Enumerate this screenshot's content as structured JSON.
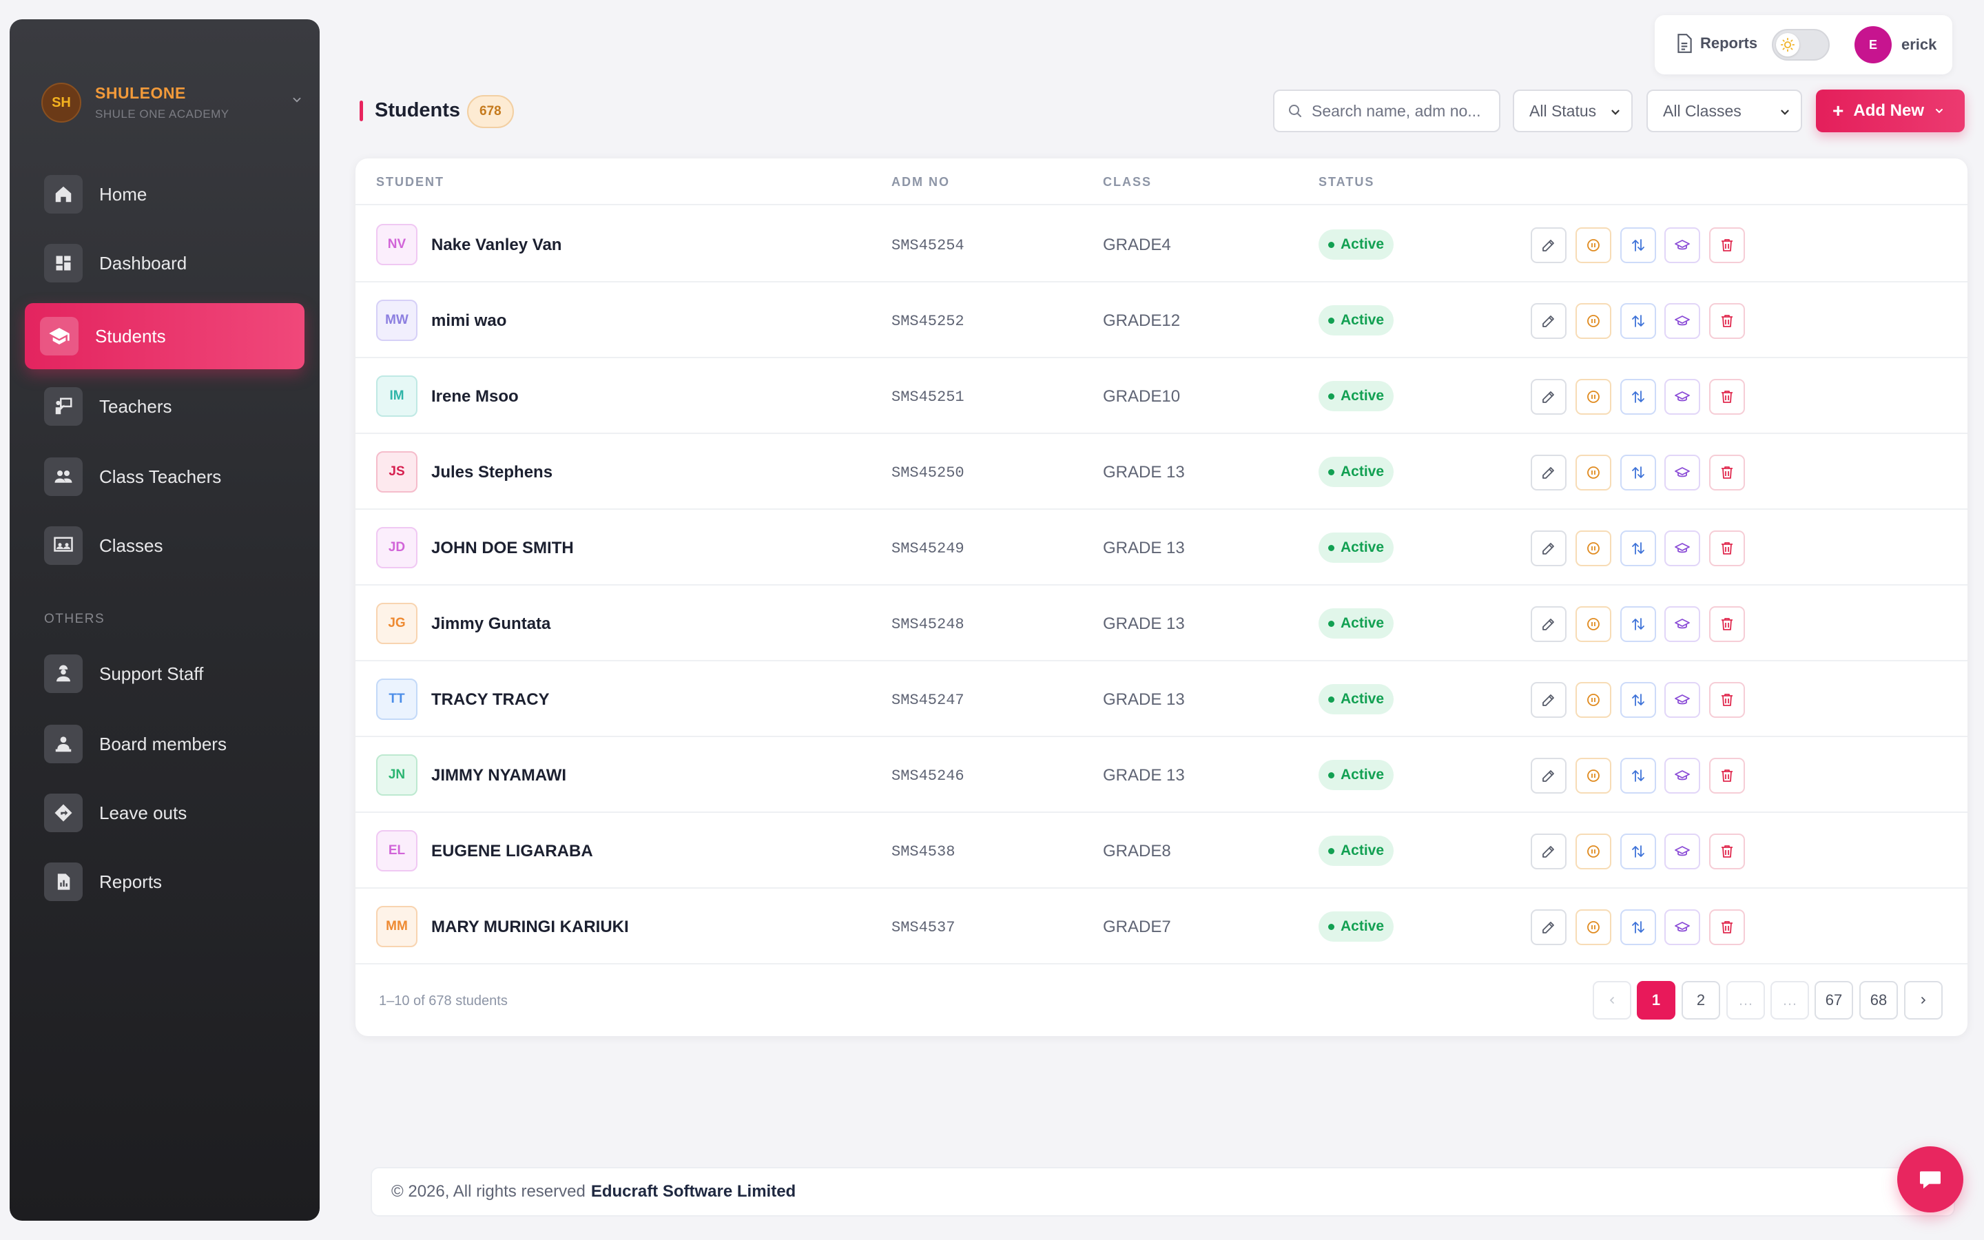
{
  "brand": {
    "initials": "SH",
    "name": "SHULEONE",
    "subtitle": "SHULE ONE ACADEMY"
  },
  "sidebar": {
    "items": [
      {
        "label": "Home",
        "icon": "home-icon"
      },
      {
        "label": "Dashboard",
        "icon": "dashboard-icon"
      },
      {
        "label": "Students",
        "icon": "graduation-cap-icon",
        "active": true
      },
      {
        "label": "Teachers",
        "icon": "teacher-icon"
      },
      {
        "label": "Class Teachers",
        "icon": "people-icon"
      },
      {
        "label": "Classes",
        "icon": "classroom-icon"
      }
    ],
    "section_label": "OTHERS",
    "other_items": [
      {
        "label": "Support Staff",
        "icon": "staff-icon"
      },
      {
        "label": "Board members",
        "icon": "board-icon"
      },
      {
        "label": "Leave outs",
        "icon": "directions-icon"
      },
      {
        "label": "Reports",
        "icon": "report-icon"
      }
    ]
  },
  "topbar": {
    "reports_label": "Reports",
    "user_initial": "E",
    "user_name": "erick"
  },
  "page": {
    "title": "Students",
    "count": "678",
    "search_placeholder": "Search name, adm no...",
    "status_filter": "All Status",
    "class_filter": "All Classes",
    "add_label": "Add New"
  },
  "table": {
    "columns": [
      "STUDENT",
      "ADM NO",
      "CLASS",
      "STATUS"
    ],
    "rows": [
      {
        "initials": "NV",
        "name": "Nake Vanley Van",
        "adm": "SMS45254",
        "class": "GRADE4",
        "status": "Active"
      },
      {
        "initials": "MW",
        "name": "mimi wao",
        "adm": "SMS45252",
        "class": "GRADE12",
        "status": "Active"
      },
      {
        "initials": "IM",
        "name": "Irene Msoo",
        "adm": "SMS45251",
        "class": "GRADE10",
        "status": "Active"
      },
      {
        "initials": "JS",
        "name": "Jules Stephens",
        "adm": "SMS45250",
        "class": "GRADE 13",
        "status": "Active"
      },
      {
        "initials": "JD",
        "name": "JOHN DOE SMITH",
        "adm": "SMS45249",
        "class": "GRADE 13",
        "status": "Active"
      },
      {
        "initials": "JG",
        "name": "Jimmy Guntata",
        "adm": "SMS45248",
        "class": "GRADE 13",
        "status": "Active"
      },
      {
        "initials": "TT",
        "name": "TRACY TRACY",
        "adm": "SMS45247",
        "class": "GRADE 13",
        "status": "Active"
      },
      {
        "initials": "JN",
        "name": "JIMMY NYAMAWI",
        "adm": "SMS45246",
        "class": "GRADE 13",
        "status": "Active"
      },
      {
        "initials": "EL",
        "name": "EUGENE LIGARABA",
        "adm": "SMS4538",
        "class": "GRADE8",
        "status": "Active"
      },
      {
        "initials": "MM",
        "name": "MARY MURINGI KARIUKI",
        "adm": "SMS4537",
        "class": "GRADE7",
        "status": "Active"
      }
    ],
    "avatar_colors": [
      {
        "fg": "#d164d8",
        "bg": "#fbeefc",
        "border": "#f0c8f3"
      },
      {
        "fg": "#8c7fe0",
        "bg": "#f1effd",
        "border": "#d6d0f7"
      },
      {
        "fg": "#2fb5a8",
        "bg": "#e6f8f6",
        "border": "#bfe9e4"
      },
      {
        "fg": "#d61f4f",
        "bg": "#fde9ee",
        "border": "#f5bccb"
      },
      {
        "fg": "#d164d8",
        "bg": "#fbeefc",
        "border": "#f0c8f3"
      },
      {
        "fg": "#ee8a32",
        "bg": "#fef3e8",
        "border": "#f8d4b0"
      },
      {
        "fg": "#4b8de8",
        "bg": "#ebf3fe",
        "border": "#c3d9f8"
      },
      {
        "fg": "#2bb571",
        "bg": "#e7f8ef",
        "border": "#bde9d0"
      },
      {
        "fg": "#d164d8",
        "bg": "#fbeefc",
        "border": "#f0c8f3"
      },
      {
        "fg": "#ee8a32",
        "bg": "#fef3e8",
        "border": "#f8d4b0"
      }
    ]
  },
  "pagination": {
    "summary": "1–10 of 678 students",
    "pages": [
      "1",
      "2",
      "…",
      "…",
      "67",
      "68"
    ],
    "current": "1"
  },
  "footer": {
    "text": "© 2026, All rights reserved",
    "company": "Educraft Software Limited"
  },
  "colors": {
    "accent": "#e8245e",
    "success": "#12a052",
    "sidebar": "#2a2b2f"
  }
}
